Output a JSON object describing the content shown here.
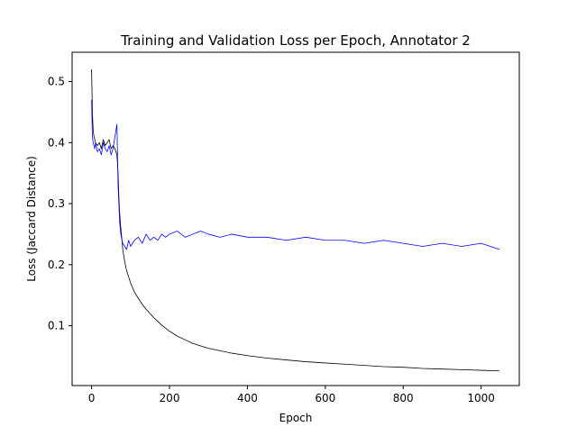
{
  "chart_data": {
    "type": "line",
    "title": "Training and Validation Loss per Epoch, Annotator 2",
    "xlabel": "Epoch",
    "ylabel": "Loss (Jaccard Distance)",
    "xlim": [
      -50,
      1098
    ],
    "ylim": [
      0.002,
      0.548
    ],
    "xticks": [
      0,
      200,
      400,
      600,
      800,
      1000
    ],
    "yticks": [
      0.1,
      0.2,
      0.3,
      0.4,
      0.5
    ],
    "grid": false,
    "legend": "none",
    "series": [
      {
        "color": "#000000",
        "x": [
          0,
          2,
          4,
          6,
          8,
          10,
          15,
          20,
          25,
          30,
          35,
          40,
          45,
          50,
          55,
          60,
          65,
          68,
          70,
          72,
          75,
          78,
          80,
          85,
          90,
          95,
          100,
          110,
          120,
          130,
          140,
          150,
          160,
          170,
          180,
          190,
          200,
          220,
          240,
          260,
          280,
          300,
          330,
          360,
          400,
          450,
          500,
          550,
          600,
          650,
          700,
          750,
          800,
          850,
          900,
          950,
          1000,
          1047
        ],
        "values": [
          0.52,
          0.45,
          0.42,
          0.41,
          0.405,
          0.4,
          0.395,
          0.4,
          0.39,
          0.405,
          0.395,
          0.4,
          0.405,
          0.39,
          0.395,
          0.39,
          0.38,
          0.35,
          0.31,
          0.285,
          0.26,
          0.24,
          0.225,
          0.205,
          0.19,
          0.18,
          0.17,
          0.155,
          0.145,
          0.135,
          0.127,
          0.12,
          0.113,
          0.107,
          0.101,
          0.096,
          0.091,
          0.083,
          0.077,
          0.071,
          0.067,
          0.063,
          0.059,
          0.055,
          0.051,
          0.047,
          0.044,
          0.041,
          0.039,
          0.037,
          0.035,
          0.033,
          0.032,
          0.03,
          0.029,
          0.028,
          0.027,
          0.026
        ]
      },
      {
        "color": "#0000ff",
        "x": [
          0,
          2,
          4,
          6,
          8,
          10,
          15,
          20,
          25,
          30,
          35,
          40,
          45,
          50,
          55,
          60,
          65,
          68,
          70,
          72,
          75,
          78,
          80,
          85,
          90,
          95,
          100,
          110,
          120,
          130,
          140,
          150,
          160,
          170,
          180,
          190,
          200,
          220,
          240,
          260,
          280,
          300,
          330,
          360,
          400,
          450,
          500,
          550,
          600,
          650,
          700,
          750,
          800,
          850,
          900,
          950,
          1000,
          1047
        ],
        "values": [
          0.47,
          0.41,
          0.4,
          0.395,
          0.39,
          0.4,
          0.385,
          0.39,
          0.38,
          0.4,
          0.39,
          0.385,
          0.395,
          0.38,
          0.39,
          0.41,
          0.43,
          0.33,
          0.3,
          0.27,
          0.25,
          0.24,
          0.235,
          0.23,
          0.225,
          0.24,
          0.23,
          0.24,
          0.245,
          0.235,
          0.25,
          0.24,
          0.245,
          0.24,
          0.25,
          0.245,
          0.25,
          0.255,
          0.245,
          0.25,
          0.255,
          0.25,
          0.245,
          0.25,
          0.245,
          0.245,
          0.24,
          0.245,
          0.24,
          0.24,
          0.235,
          0.24,
          0.235,
          0.23,
          0.235,
          0.23,
          0.235,
          0.225
        ]
      }
    ]
  }
}
